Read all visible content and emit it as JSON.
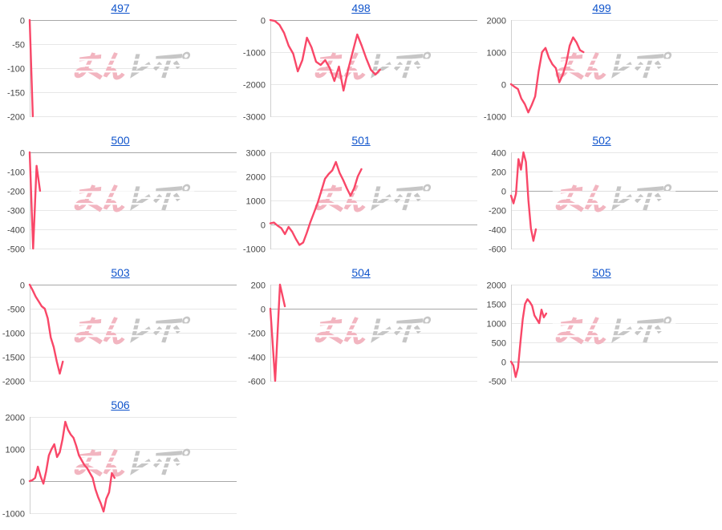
{
  "style": {
    "background": "#ffffff",
    "link_color": "#1155cc",
    "line_color": "#f94768",
    "grid_color": "#e7e7e7",
    "zero_line_color": "#a8a8a8",
    "axis_line_color": "#cfcfcf",
    "tick_label_color": "#454545"
  },
  "watermark": {
    "label": "みんレポ",
    "pink": "#f2b5c0",
    "gray": "#c6c6c6"
  },
  "layout_hints": {
    "grid": "horizontal-only",
    "legend": "none",
    "x_axis_labels": "none",
    "charts_per_row": 3
  },
  "chart_data": [
    {
      "type": "line",
      "title": "497",
      "y_ticks": [
        0,
        -50,
        -100,
        -150,
        -200
      ],
      "ylim": [
        -200,
        0
      ],
      "x_span": 0.015,
      "values": [
        0,
        -200
      ]
    },
    {
      "type": "line",
      "title": "498",
      "y_ticks": [
        0,
        -1000,
        -2000,
        -3000
      ],
      "ylim": [
        -3000,
        0
      ],
      "x_span": 0.53,
      "values": [
        0,
        -30,
        -150,
        -400,
        -800,
        -1050,
        -1600,
        -1250,
        -550,
        -850,
        -1300,
        -1400,
        -1250,
        -1500,
        -1900,
        -1450,
        -2200,
        -1550,
        -1000,
        -450,
        -800,
        -1200,
        -1550,
        -1700,
        -1550
      ]
    },
    {
      "type": "line",
      "title": "499",
      "y_ticks": [
        2000,
        1000,
        0,
        -1000
      ],
      "ylim": [
        -1000,
        2000
      ],
      "x_span": 0.35,
      "values": [
        0,
        -80,
        -150,
        -450,
        -620,
        -880,
        -650,
        -380,
        400,
        1000,
        1130,
        820,
        620,
        500,
        60,
        300,
        650,
        1200,
        1460,
        1300,
        1060,
        1000
      ]
    },
    {
      "type": "line",
      "title": "500",
      "y_ticks": [
        0,
        -100,
        -200,
        -300,
        -400,
        -500
      ],
      "ylim": [
        -500,
        0
      ],
      "x_span": 0.05,
      "values": [
        0,
        -500,
        -70,
        -200
      ]
    },
    {
      "type": "line",
      "title": "501",
      "y_ticks": [
        3000,
        2000,
        1000,
        0,
        -1000
      ],
      "ylim": [
        -1000,
        3000
      ],
      "x_span": 0.44,
      "values": [
        50,
        80,
        -50,
        -150,
        -400,
        -100,
        -300,
        -600,
        -850,
        -750,
        -350,
        100,
        500,
        900,
        1400,
        1900,
        2100,
        2250,
        2600,
        2150,
        1850,
        1500,
        1200,
        1500,
        2000,
        2300
      ]
    },
    {
      "type": "line",
      "title": "502",
      "y_ticks": [
        400,
        200,
        0,
        -200,
        -400,
        -600
      ],
      "ylim": [
        -600,
        400
      ],
      "x_span": 0.12,
      "values": [
        -50,
        -130,
        -30,
        330,
        220,
        400,
        300,
        -100,
        -390,
        -520,
        -400
      ]
    },
    {
      "type": "line",
      "title": "503",
      "y_ticks": [
        0,
        -500,
        -1000,
        -1500,
        -2000
      ],
      "ylim": [
        -2000,
        0
      ],
      "x_span": 0.16,
      "values": [
        0,
        -120,
        -250,
        -350,
        -450,
        -500,
        -700,
        -1100,
        -1300,
        -1600,
        -1850,
        -1600
      ]
    },
    {
      "type": "line",
      "title": "504",
      "y_ticks": [
        200,
        0,
        -200,
        -400,
        -600
      ],
      "ylim": [
        -600,
        200
      ],
      "x_span": 0.07,
      "values": [
        0,
        -600,
        200,
        20
      ]
    },
    {
      "type": "line",
      "title": "505",
      "y_ticks": [
        2000,
        1500,
        1000,
        500,
        0,
        -500
      ],
      "ylim": [
        -500,
        2000
      ],
      "x_span": 0.17,
      "values": [
        0,
        -100,
        -400,
        -150,
        500,
        1100,
        1500,
        1620,
        1550,
        1450,
        1200,
        1100,
        1000,
        1350,
        1150,
        1250
      ]
    },
    {
      "type": "line",
      "title": "506",
      "y_ticks": [
        2000,
        1000,
        0,
        -1000
      ],
      "ylim": [
        -1000,
        2000
      ],
      "x_span": 0.41,
      "values": [
        0,
        30,
        100,
        450,
        150,
        -80,
        300,
        800,
        1000,
        1150,
        750,
        900,
        1300,
        1850,
        1600,
        1450,
        1350,
        1100,
        800,
        650,
        500,
        400,
        250,
        100,
        -250,
        -500,
        -700,
        -950,
        -550,
        -350,
        250,
        100
      ]
    }
  ]
}
